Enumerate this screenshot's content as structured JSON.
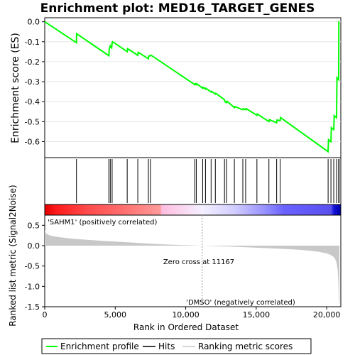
{
  "chart_data": {
    "type": "line",
    "title": "Enrichment plot: MED16_TARGET_GENES",
    "colors": {
      "es_line": "#00ff00",
      "hits": "#000000",
      "metric_fill": "#c8c8c8",
      "positive_label": "#ff0000",
      "negative_label": "#0000ff"
    },
    "top_panel": {
      "ylabel": "Enrichment score (ES)",
      "ylim": [
        -0.68,
        0.02
      ],
      "yticks": [
        0.0,
        -0.1,
        -0.2,
        -0.3,
        -0.4,
        -0.5,
        -0.6
      ],
      "ytick_labels": [
        "0.0",
        "-0.1",
        "-0.2",
        "-0.3",
        "-0.4",
        "-0.5",
        "-0.6"
      ],
      "series": [
        {
          "x": [
            0,
            2250,
            2260,
            4550,
            4570,
            4650,
            4750,
            4780,
            4820,
            5850,
            5880,
            6600,
            6630,
            7350,
            7380,
            7500,
            7530,
            10650,
            10680,
            10750,
            10780,
            11200,
            11230,
            11400,
            11430,
            11800,
            11830,
            12100,
            12130,
            12750,
            12780,
            12900,
            12930,
            13450,
            13480,
            14050,
            14080,
            14250,
            14280,
            15050,
            15080,
            15900,
            15930,
            16450,
            16480,
            16700,
            16730,
            20100,
            20130,
            20300,
            20330,
            20500,
            20530,
            20700,
            20730,
            20850,
            20860,
            20900
          ],
          "y": [
            0.0,
            -0.105,
            -0.06,
            -0.17,
            -0.14,
            -0.12,
            -0.13,
            -0.105,
            -0.1,
            -0.15,
            -0.135,
            -0.168,
            -0.153,
            -0.185,
            -0.172,
            -0.17,
            -0.167,
            -0.315,
            -0.31,
            -0.315,
            -0.31,
            -0.333,
            -0.328,
            -0.337,
            -0.333,
            -0.352,
            -0.348,
            -0.362,
            -0.358,
            -0.39,
            -0.4,
            -0.405,
            -0.398,
            -0.43,
            -0.425,
            -0.44,
            -0.435,
            -0.44,
            -0.435,
            -0.468,
            -0.462,
            -0.5,
            -0.49,
            -0.505,
            -0.492,
            -0.495,
            -0.48,
            -0.65,
            -0.59,
            -0.6,
            -0.53,
            -0.54,
            -0.47,
            -0.48,
            -0.28,
            -0.29,
            0.0,
            0.0
          ]
        }
      ]
    },
    "hits_panel": {
      "positions": [
        2250,
        4550,
        4650,
        4780,
        5850,
        6600,
        7350,
        7500,
        10650,
        10750,
        11200,
        11400,
        11800,
        12100,
        12750,
        12900,
        13450,
        14050,
        14250,
        15050,
        15900,
        16450,
        16700,
        20100,
        20300,
        20500,
        20700,
        20850,
        20880
      ]
    },
    "heatmap_bar": {
      "gradient_stops": [
        {
          "rank": 0,
          "color": "#e00000"
        },
        {
          "rank": 800,
          "color": "#ff1a1a"
        },
        {
          "rank": 3000,
          "color": "#ff4a4a"
        },
        {
          "rank": 5500,
          "color": "#ff6e6e"
        },
        {
          "rank": 8200,
          "color": "#ff9b9b"
        },
        {
          "rank": 8300,
          "color": "#ffbde0"
        },
        {
          "rank": 11167,
          "color": "#f4f0ff"
        },
        {
          "rank": 13500,
          "color": "#d0ccff"
        },
        {
          "rank": 15500,
          "color": "#9a95ff"
        },
        {
          "rank": 17000,
          "color": "#6a62ff"
        },
        {
          "rank": 20300,
          "color": "#5a50ee"
        },
        {
          "rank": 20500,
          "color": "#1414d8"
        },
        {
          "rank": 20900,
          "color": "#0000b0"
        }
      ]
    },
    "bottom_panel": {
      "ylabel": "Ranked list metric (Signal2Noise)",
      "xlabel": "Rank in Ordered Dataset",
      "ylim": [
        -1.5,
        0.75
      ],
      "yticks": [
        0.5,
        0.0,
        -0.5,
        -1.0,
        -1.5
      ],
      "ytick_labels": [
        "0.5",
        "0.0",
        "-0.5",
        "-1.0",
        "-1.5"
      ],
      "xlim": [
        0,
        21000
      ],
      "xticks": [
        0,
        5000,
        10000,
        15000,
        20000
      ],
      "xtick_labels": [
        "0",
        "5,000",
        "10,000",
        "15,000",
        "20,000"
      ],
      "metric_curve": {
        "x": [
          0,
          20,
          100,
          300,
          600,
          1000,
          2000,
          3000,
          4000,
          5000,
          6000,
          7000,
          8000,
          9000,
          10000,
          11167,
          12000,
          13000,
          14000,
          15000,
          16000,
          17000,
          18000,
          19000,
          19500,
          20000,
          20300,
          20500,
          20600,
          20700,
          20780,
          20830,
          20870,
          20900
        ],
        "y": [
          0.4,
          0.35,
          0.3,
          0.26,
          0.23,
          0.21,
          0.17,
          0.145,
          0.12,
          0.1,
          0.08,
          0.06,
          0.04,
          0.025,
          0.012,
          0.0,
          -0.01,
          -0.02,
          -0.035,
          -0.05,
          -0.065,
          -0.08,
          -0.1,
          -0.13,
          -0.155,
          -0.19,
          -0.23,
          -0.28,
          -0.33,
          -0.42,
          -0.6,
          -0.9,
          -1.42,
          -1.42
        ]
      },
      "zero_cross_rank": 11167,
      "zero_cross_label": "Zero cross at 11167",
      "positive_label": "'SAHM1' (positively correlated)",
      "negative_label": "'DMSO' (negatively correlated)"
    },
    "legend": {
      "entries": [
        {
          "label": "Enrichment profile",
          "color": "#00ff00"
        },
        {
          "label": "Hits",
          "color": "#000000"
        },
        {
          "label": "Ranking metric scores",
          "color": "#c8c8c8"
        }
      ]
    }
  }
}
